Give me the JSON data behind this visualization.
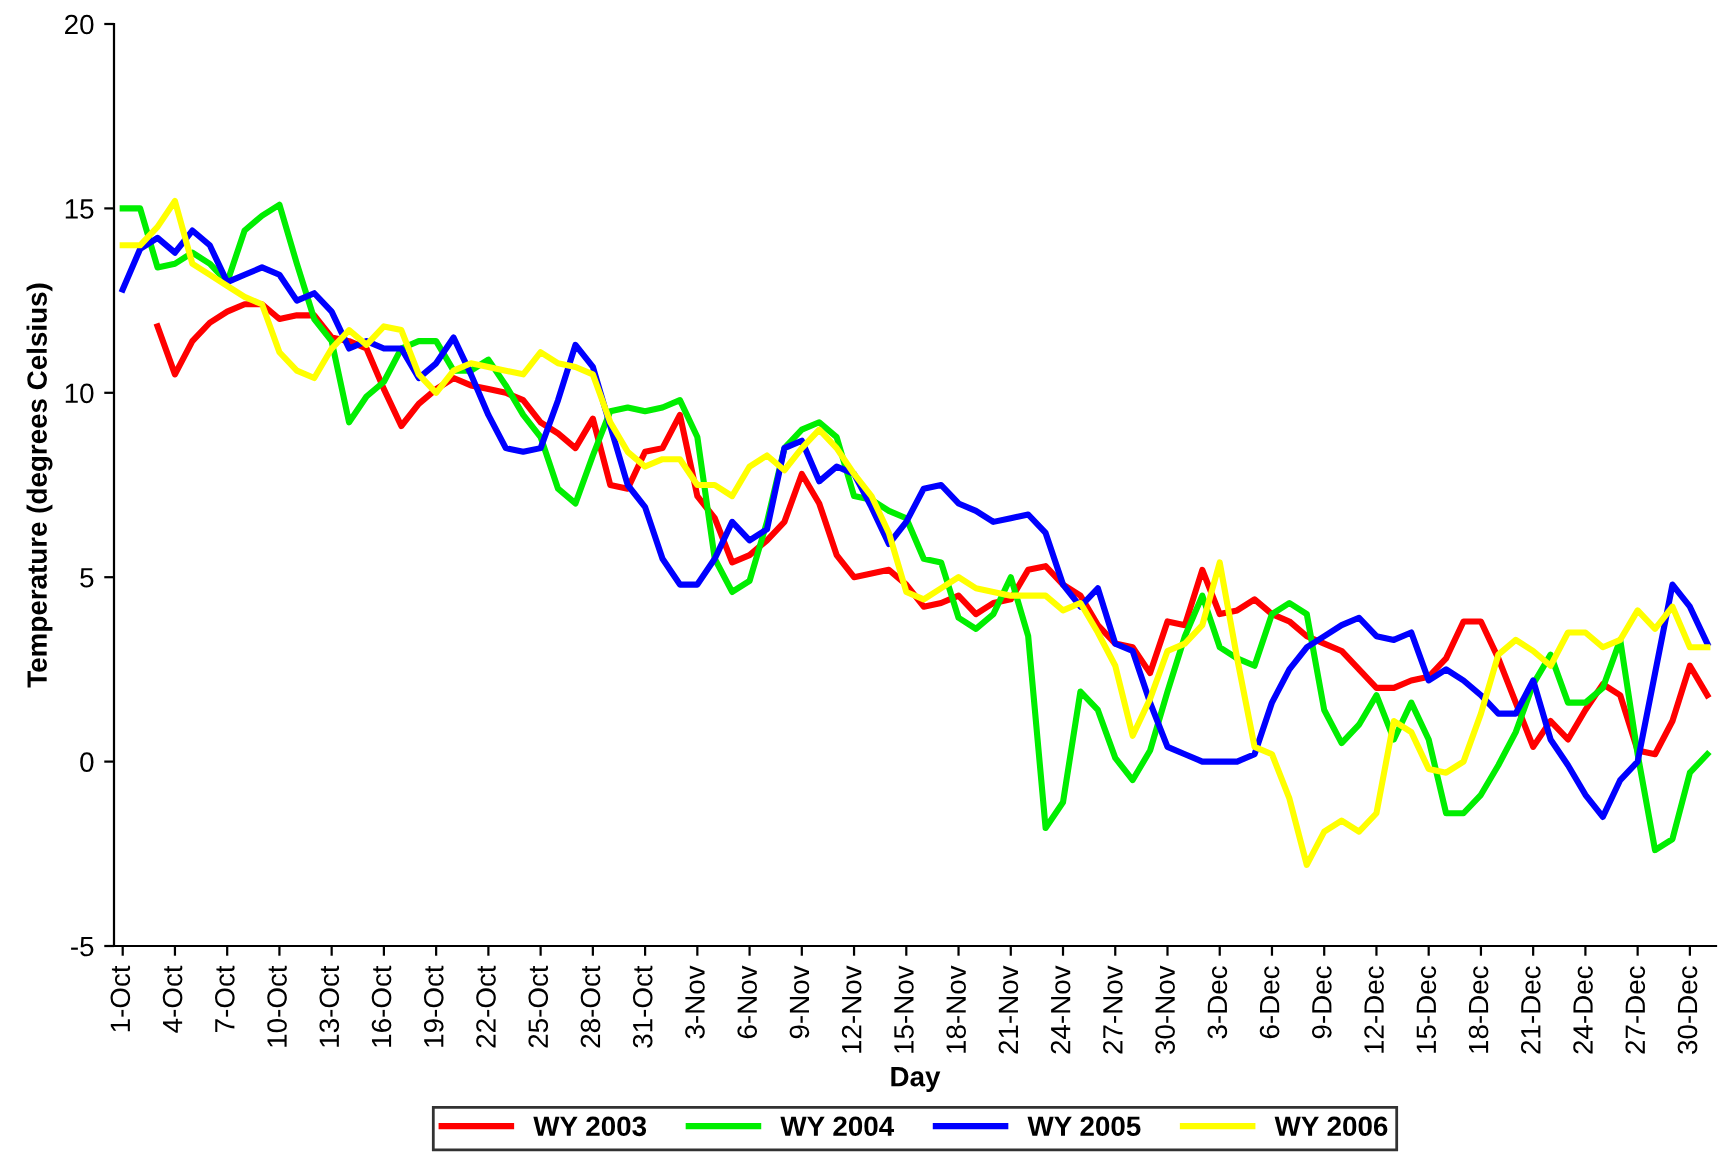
{
  "chart_data": {
    "type": "line",
    "xlabel": "Day",
    "ylabel": "Temperature (degrees Celsius)",
    "categories": [
      "1-Oct",
      null,
      null,
      "4-Oct",
      null,
      null,
      "7-Oct",
      null,
      null,
      "10-Oct",
      null,
      null,
      "13-Oct",
      null,
      null,
      "16-Oct",
      null,
      null,
      "19-Oct",
      null,
      null,
      "22-Oct",
      null,
      null,
      "25-Oct",
      null,
      null,
      "28-Oct",
      null,
      null,
      "31-Oct",
      null,
      null,
      "3-Nov",
      null,
      null,
      "6-Nov",
      null,
      null,
      "9-Nov",
      null,
      null,
      "12-Nov",
      null,
      null,
      "15-Nov",
      null,
      null,
      "18-Nov",
      null,
      null,
      "21-Nov",
      null,
      null,
      "24-Nov",
      null,
      null,
      "27-Nov",
      null,
      null,
      "30-Nov",
      null,
      null,
      "3-Dec",
      null,
      null,
      "6-Dec",
      null,
      null,
      "9-Dec",
      null,
      null,
      "12-Dec",
      null,
      null,
      "15-Dec",
      null,
      null,
      "18-Dec",
      null,
      null,
      "21-Dec",
      null,
      null,
      "24-Dec",
      null,
      null,
      "27-Dec",
      null,
      null,
      "30-Dec",
      null
    ],
    "ylim": [
      -5,
      20
    ],
    "yticks": [
      -5,
      0,
      5,
      10,
      15,
      20
    ],
    "grid": false,
    "legend": "bottom",
    "marker": "none",
    "line_style": "solid",
    "series": [
      {
        "name": "WY 2003",
        "color": "#ff0000",
        "values": [
          null,
          null,
          11.8,
          10.5,
          11.4,
          11.9,
          12.2,
          12.4,
          12.4,
          12.0,
          12.1,
          12.1,
          11.5,
          11.4,
          11.2,
          10.1,
          9.1,
          9.7,
          10.1,
          10.4,
          10.2,
          10.1,
          10.0,
          9.8,
          9.2,
          8.9,
          8.5,
          9.3,
          7.5,
          7.4,
          8.4,
          8.5,
          9.4,
          7.2,
          6.6,
          5.4,
          5.6,
          6.0,
          6.5,
          7.8,
          7.0,
          5.6,
          5.0,
          5.1,
          5.2,
          4.8,
          4.2,
          4.3,
          4.5,
          4.0,
          4.3,
          4.4,
          5.2,
          5.3,
          4.8,
          4.5,
          3.7,
          3.2,
          3.1,
          2.4,
          3.8,
          3.7,
          5.2,
          4.0,
          4.1,
          4.4,
          4.0,
          3.8,
          3.4,
          3.2,
          3.0,
          2.5,
          2.0,
          2.0,
          2.2,
          2.3,
          2.8,
          3.8,
          3.8,
          2.8,
          1.6,
          0.4,
          1.1,
          0.6,
          1.4,
          2.1,
          1.8,
          0.3,
          0.2,
          1.1,
          2.6,
          1.8
        ]
      },
      {
        "name": "WY 2004",
        "color": "#00ee00",
        "values": [
          15.0,
          15.0,
          13.4,
          13.5,
          13.8,
          13.5,
          13.0,
          14.4,
          14.8,
          15.1,
          13.5,
          12.0,
          11.4,
          9.2,
          9.9,
          10.3,
          11.2,
          11.4,
          11.4,
          10.6,
          10.6,
          10.9,
          10.2,
          9.4,
          8.8,
          7.4,
          7.0,
          8.3,
          9.5,
          9.6,
          9.5,
          9.6,
          9.8,
          8.8,
          5.5,
          4.6,
          4.9,
          6.5,
          8.5,
          9.0,
          9.2,
          8.8,
          7.2,
          7.1,
          6.8,
          6.6,
          5.5,
          5.4,
          3.9,
          3.6,
          4.0,
          5.0,
          3.4,
          -1.8,
          -1.1,
          1.9,
          1.4,
          0.1,
          -0.5,
          0.3,
          1.9,
          3.4,
          4.5,
          3.1,
          2.8,
          2.6,
          4.0,
          4.3,
          4.0,
          1.4,
          0.5,
          1.0,
          1.8,
          0.6,
          1.6,
          0.6,
          -1.4,
          -1.4,
          -0.9,
          -0.1,
          0.8,
          2.1,
          2.9,
          1.6,
          1.6,
          2.0,
          3.3,
          0.2,
          -2.4,
          -2.1,
          -0.3,
          0.2
        ]
      },
      {
        "name": "WY 2005",
        "color": "#0000ff",
        "values": [
          12.8,
          13.9,
          14.2,
          13.8,
          14.4,
          14.0,
          13.0,
          13.2,
          13.4,
          13.2,
          12.5,
          12.7,
          12.2,
          11.2,
          11.4,
          11.2,
          11.2,
          10.4,
          10.8,
          11.5,
          10.5,
          9.4,
          8.5,
          8.4,
          8.5,
          9.8,
          11.3,
          10.7,
          9.1,
          7.5,
          6.9,
          5.5,
          4.8,
          4.8,
          5.5,
          6.5,
          6.0,
          6.3,
          8.5,
          8.7,
          7.6,
          8.0,
          7.8,
          6.9,
          5.9,
          6.5,
          7.4,
          7.5,
          7.0,
          6.8,
          6.5,
          6.6,
          6.7,
          6.2,
          4.8,
          4.2,
          4.7,
          3.2,
          3.0,
          1.6,
          0.4,
          0.2,
          0.0,
          0.0,
          0.0,
          0.2,
          1.6,
          2.5,
          3.1,
          3.4,
          3.7,
          3.9,
          3.4,
          3.3,
          3.5,
          2.2,
          2.5,
          2.2,
          1.8,
          1.3,
          1.3,
          2.2,
          0.6,
          -0.1,
          -0.9,
          -1.5,
          -0.5,
          0.0,
          2.4,
          4.8,
          4.2,
          3.2
        ]
      },
      {
        "name": "WY 2006",
        "color": "#ffff00",
        "values": [
          14.0,
          14.0,
          14.5,
          15.2,
          13.5,
          13.2,
          12.9,
          12.6,
          12.4,
          11.1,
          10.6,
          10.4,
          11.2,
          11.7,
          11.3,
          11.8,
          11.7,
          10.5,
          10.0,
          10.6,
          10.8,
          10.7,
          10.6,
          10.5,
          11.1,
          10.8,
          10.7,
          10.5,
          9.2,
          8.4,
          8.0,
          8.2,
          8.2,
          7.5,
          7.5,
          7.2,
          8.0,
          8.3,
          7.9,
          8.5,
          9.0,
          8.5,
          7.8,
          7.2,
          6.2,
          4.6,
          4.4,
          4.7,
          5.0,
          4.7,
          4.6,
          4.5,
          4.5,
          4.5,
          4.1,
          4.3,
          3.5,
          2.6,
          0.7,
          1.7,
          3.0,
          3.2,
          3.7,
          5.4,
          2.8,
          0.4,
          0.2,
          -1.0,
          -2.8,
          -1.9,
          -1.6,
          -1.9,
          -1.4,
          1.1,
          0.8,
          -0.2,
          -0.3,
          0.0,
          1.3,
          2.9,
          3.3,
          3.0,
          2.6,
          3.5,
          3.5,
          3.1,
          3.3,
          4.1,
          3.6,
          4.2,
          3.1,
          3.1
        ]
      }
    ]
  }
}
